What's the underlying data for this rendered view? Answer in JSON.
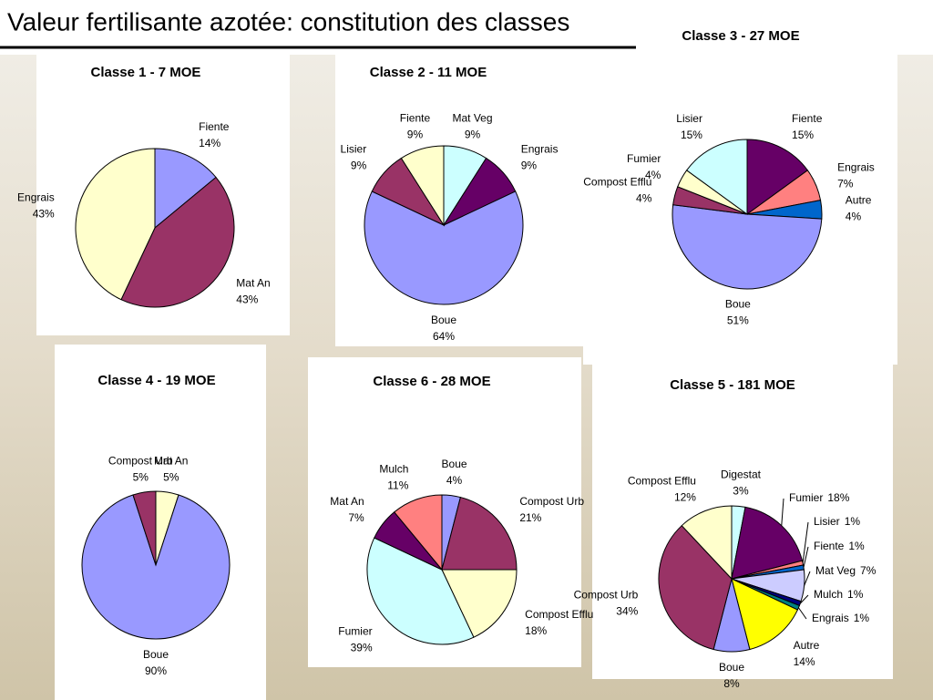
{
  "page_title": "Valeur fertilisante azotée: constitution des classes",
  "chart_data": [
    {
      "type": "pie",
      "title": "Classe 1 - 7 MOE",
      "categories": [
        "Fiente",
        "Mat An",
        "Engrais"
      ],
      "values": [
        14,
        43,
        43
      ],
      "value_labels": [
        "14%",
        "43%",
        "43%"
      ],
      "colors": [
        "#9999ff",
        "#993366",
        "#ffffcc"
      ]
    },
    {
      "type": "pie",
      "title": "Classe 2 - 11 MOE",
      "categories": [
        "Mat Veg",
        "Engrais",
        "Boue",
        "Lisier",
        "Fiente"
      ],
      "values": [
        9,
        9,
        64,
        9,
        9
      ],
      "value_labels": [
        "9%",
        "9%",
        "64%",
        "9%",
        "9%"
      ],
      "colors": [
        "#ccffff",
        "#660066",
        "#9999ff",
        "#993366",
        "#ffffcc"
      ]
    },
    {
      "type": "pie",
      "title": "Classe 3 - 27 MOE",
      "categories": [
        "Fiente",
        "Engrais",
        "Autre",
        "Boue",
        "Compost Efflu",
        "Fumier",
        "Lisier"
      ],
      "values": [
        15,
        7,
        4,
        51,
        4,
        4,
        15
      ],
      "value_labels": [
        "15%",
        "7%",
        "4%",
        "51%",
        "4%",
        "4%",
        "15%"
      ],
      "colors": [
        "#660066",
        "#ff8080",
        "#0066cc",
        "#9999ff",
        "#993366",
        "#ffffcc",
        "#ccffff"
      ]
    },
    {
      "type": "pie",
      "title": "Classe 4 - 19 MOE",
      "categories": [
        "Mat An",
        "Boue",
        "Compost Urb"
      ],
      "values": [
        5,
        90,
        5
      ],
      "value_labels": [
        "5%",
        "90%",
        "5%"
      ],
      "colors": [
        "#ffffcc",
        "#9999ff",
        "#993366"
      ]
    },
    {
      "type": "pie",
      "title": "Classe 6 - 28 MOE",
      "categories": [
        "Boue",
        "Compost Urb",
        "Compost Efflu",
        "Fumier",
        "Mat An",
        "Mulch"
      ],
      "values": [
        4,
        21,
        18,
        39,
        7,
        11
      ],
      "value_labels": [
        "4%",
        "21%",
        "18%",
        "39%",
        "7%",
        "11%"
      ],
      "colors": [
        "#9999ff",
        "#993366",
        "#ffffcc",
        "#ccffff",
        "#660066",
        "#ff8080"
      ]
    },
    {
      "type": "pie",
      "title": "Classe 5 - 181 MOE",
      "categories": [
        "Digestat",
        "Fumier",
        "Lisier",
        "Fiente",
        "Mat Veg",
        "Mulch",
        "Engrais",
        "Autre",
        "Boue",
        "Compost Urb",
        "Compost Efflu"
      ],
      "values": [
        3,
        18,
        1,
        1,
        7,
        1,
        1,
        14,
        8,
        34,
        12
      ],
      "value_labels": [
        "3%",
        "18%",
        "1%",
        "1%",
        "7%",
        "1%",
        "1%",
        "14%",
        "8%",
        "34%",
        "12%"
      ],
      "colors": [
        "#ccffff",
        "#660066",
        "#ff8080",
        "#0066cc",
        "#ccccff",
        "#000080",
        "#008080",
        "#ffff00",
        "#9999ff",
        "#993366",
        "#ffffcc"
      ]
    }
  ]
}
